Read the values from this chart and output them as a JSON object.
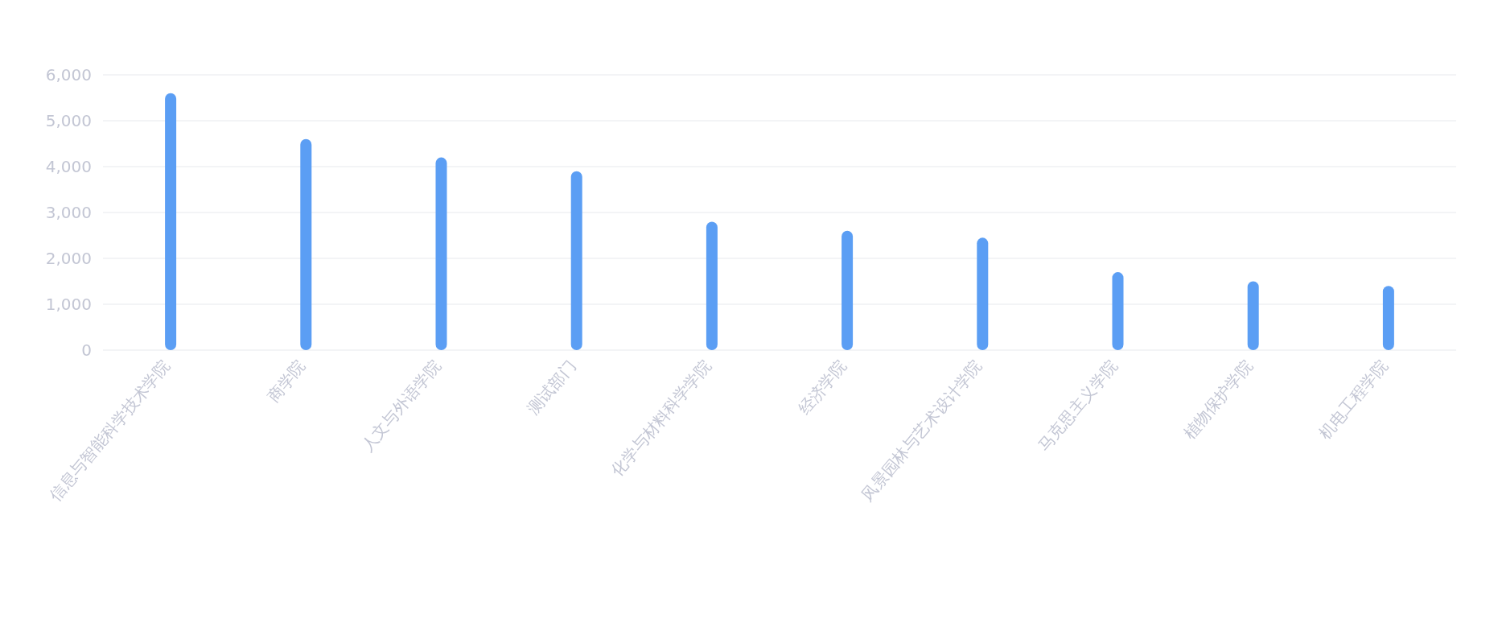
{
  "chart_data": {
    "type": "bar",
    "categories": [
      "信息与智能科学技术学院",
      "商学院",
      "人文与外语学院",
      "测试部门",
      "化学与材料科学学院",
      "经济学院",
      "风景园林与艺术设计学院",
      "马克思主义学院",
      "植物保护学院",
      "机电工程学院"
    ],
    "values": [
      5600,
      4600,
      4200,
      3900,
      2800,
      2600,
      2450,
      1700,
      1500,
      1400
    ],
    "color": "#5b9ef4",
    "ylim": [
      0,
      6000
    ],
    "yticks": [
      {
        "value": 0,
        "label": "0"
      },
      {
        "value": 1000,
        "label": "1,000"
      },
      {
        "value": 2000,
        "label": "2,000"
      },
      {
        "value": 3000,
        "label": "3,000"
      },
      {
        "value": 4000,
        "label": "4,000"
      },
      {
        "value": 5000,
        "label": "5,000"
      },
      {
        "value": 6000,
        "label": "6,000"
      }
    ],
    "grid": "y"
  }
}
